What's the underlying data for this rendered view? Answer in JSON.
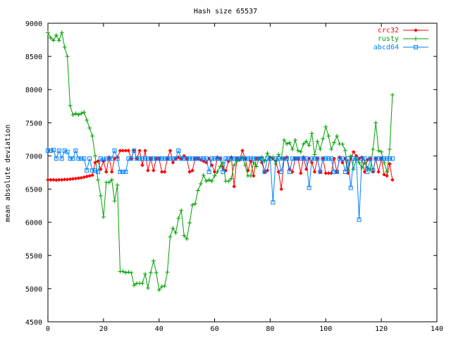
{
  "chart_data": {
    "type": "line",
    "title": "Hash size 65537",
    "xlabel": "",
    "ylabel": "mean absolute deviation",
    "xlim": [
      0,
      140
    ],
    "ylim": [
      4500,
      9000
    ],
    "xticks": [
      0,
      20,
      40,
      60,
      80,
      100,
      120,
      140
    ],
    "yticks": [
      4500,
      5000,
      5500,
      6000,
      6500,
      7000,
      7500,
      8000,
      8500,
      9000
    ],
    "grid": false,
    "legend": "top-right",
    "series": [
      {
        "name": "crc32",
        "color": "#ff0000",
        "marker": "diamond",
        "y": [
          6640,
          6640,
          6640,
          6635,
          6640,
          6640,
          6645,
          6645,
          6650,
          6655,
          6660,
          6665,
          6670,
          6680,
          6690,
          6700,
          6710,
          6900,
          6920,
          6800,
          6920,
          6760,
          6980,
          6760,
          6960,
          6980,
          7080,
          7080,
          7080,
          7080,
          6960,
          7080,
          6960,
          7080,
          6860,
          7080,
          6780,
          6960,
          6780,
          6960,
          6960,
          6760,
          6760,
          6960,
          7080,
          6900,
          6960,
          6980,
          6960,
          7000,
          6960,
          6760,
          6780,
          6960,
          6960,
          6940,
          6920,
          6900,
          6960,
          6860,
          6760,
          6980,
          6960,
          6820,
          6780,
          6920,
          6980,
          6540,
          6960,
          6940,
          7080,
          6960,
          6780,
          6920,
          6700,
          6960,
          6960,
          6900,
          6760,
          6780,
          6980,
          6960,
          6920,
          6760,
          6500,
          6960,
          6980,
          6800,
          6760,
          6960,
          6960,
          6740,
          6980,
          6800,
          6960,
          6900,
          6760,
          6960,
          6760,
          6960,
          6740,
          6740,
          6740,
          6960,
          6760,
          6980,
          6900,
          6960,
          6740,
          6960,
          7060,
          7000,
          6960,
          6980,
          6760,
          6940,
          6960,
          6760,
          6960,
          6760,
          6960,
          6720,
          6700,
          6880,
          6640
        ],
        "lim_series": true
      },
      {
        "name": "rusty",
        "color": "#00a000",
        "marker": "plus",
        "y": [
          8860,
          8780,
          8740,
          8820,
          8740,
          8860,
          8640,
          8500,
          7760,
          7620,
          7640,
          7620,
          7640,
          7660,
          7540,
          7420,
          7300,
          7000,
          6640,
          6400,
          6080,
          6600,
          6600,
          6640,
          6320,
          6560,
          5260,
          5260,
          5240,
          5250,
          5240,
          5050,
          5080,
          5080,
          5080,
          5220,
          5010,
          5240,
          5420,
          5240,
          4980,
          5030,
          5040,
          5250,
          5780,
          5910,
          5840,
          6060,
          6180,
          5800,
          5750,
          5990,
          6260,
          6280,
          6480,
          6580,
          6710,
          6620,
          6640,
          6620,
          6700,
          6760,
          6840,
          6900,
          6620,
          6620,
          6660,
          6860,
          6920,
          6960,
          6980,
          6860,
          6700,
          6700,
          6900,
          6840,
          6960,
          6980,
          6920,
          7040,
          6960,
          6980,
          6880,
          7020,
          6960,
          7240,
          7180,
          7200,
          7100,
          7240,
          7080,
          7060,
          7180,
          7220,
          7160,
          7340,
          7020,
          7220,
          7100,
          7260,
          7440,
          7300,
          7100,
          7200,
          7300,
          7180,
          7180,
          7080,
          6780,
          7000,
          6800,
          6960,
          6900,
          6820,
          6900,
          6820,
          6800,
          7100,
          7500,
          7080,
          7060,
          6900,
          6760,
          7100,
          7920
        ],
        "lim_series": true
      },
      {
        "name": "abcd64",
        "color": "#0080ff",
        "marker": "square",
        "y": [
          7080,
          7080,
          7090,
          6960,
          7080,
          6960,
          7080,
          7060,
          6960,
          6960,
          7080,
          6960,
          6960,
          6960,
          6780,
          6960,
          6780,
          6780,
          6760,
          6960,
          6940,
          6960,
          6960,
          6960,
          7080,
          6960,
          6760,
          6760,
          6760,
          6960,
          6960,
          7080,
          6960,
          6960,
          6960,
          6960,
          6960,
          6960,
          6960,
          6960,
          6960,
          6960,
          6960,
          6960,
          6960,
          6960,
          6960,
          7080,
          6960,
          6960,
          6960,
          6960,
          6960,
          6960,
          6960,
          6960,
          6960,
          6960,
          6760,
          6960,
          6960,
          6960,
          6960,
          6760,
          6960,
          6960,
          6960,
          6960,
          6960,
          6960,
          6960,
          6960,
          6960,
          6960,
          6960,
          6960,
          6960,
          6960,
          6760,
          6960,
          6960,
          6300,
          6960,
          6960,
          6760,
          6960,
          6960,
          6760,
          6960,
          6960,
          6960,
          6960,
          6960,
          6960,
          6520,
          6960,
          6960,
          6960,
          6760,
          6960,
          6960,
          6960,
          6960,
          6760,
          6760,
          6960,
          6960,
          6760,
          6960,
          6520,
          6960,
          6960,
          6040,
          6960,
          6960,
          6760,
          6960,
          6780,
          6960,
          6960,
          6960,
          6960,
          6960,
          6960,
          6960
        ],
        "lim_series": true
      }
    ]
  }
}
